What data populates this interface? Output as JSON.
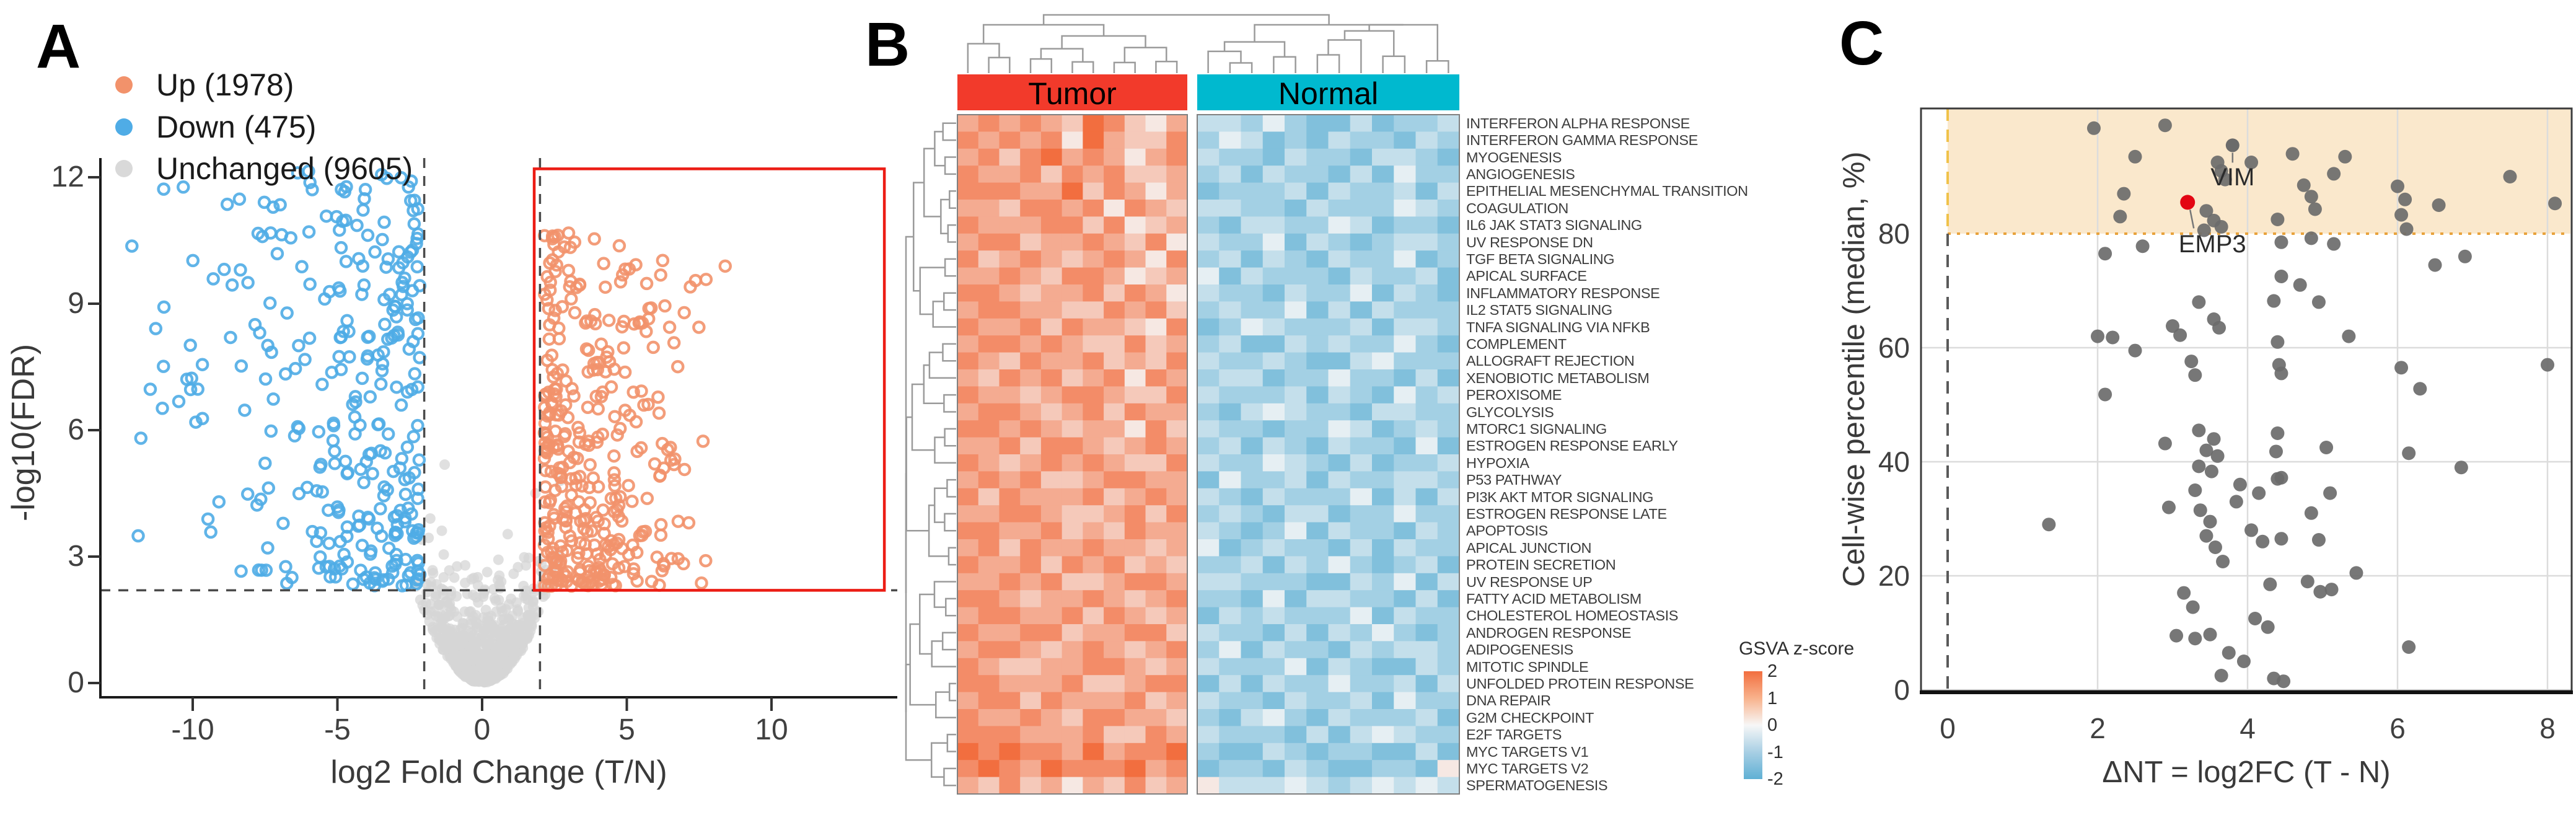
{
  "panel_labels": [
    "A",
    "B",
    "C"
  ],
  "chart_data": [
    {
      "panel": "A",
      "type": "scatter",
      "subtype": "volcano",
      "xlabel": "log2 Fold Change (T/N)",
      "ylabel": "-log10(FDR)",
      "x_ticks": [
        -10,
        -5,
        0,
        5,
        10
      ],
      "y_ticks": [
        0,
        3,
        6,
        9,
        12
      ],
      "xlim": [
        -13.2,
        14.3
      ],
      "ylim": [
        -0.35,
        12.45
      ],
      "series": [
        {
          "name": "Up (1978)",
          "count": 1978,
          "color": "#F2926B",
          "style": "ring",
          "n_displayed": 360
        },
        {
          "name": "Down (475)",
          "count": 475,
          "color": "#4FACE6",
          "style": "ring",
          "n_displayed": 310
        },
        {
          "name": "Unchanged (9605)",
          "count": 9605,
          "color": "#D9D9D9",
          "style": "solid",
          "n_displayed": 750
        }
      ],
      "legend_position": "top-left",
      "thresholds": {
        "vlines": [
          -2,
          2
        ],
        "hline": 2.2,
        "style": "dashed",
        "color": "#4a4a4a"
      },
      "highlight_box": {
        "x0": 1.8,
        "x1": 13.9,
        "y0": 2.2,
        "y1": 12.2,
        "color": "#EC1C14"
      },
      "seed": 42
    },
    {
      "panel": "B",
      "type": "heatmap",
      "col_groups": [
        {
          "name": "Tumor",
          "color": "#F23A2B",
          "n_cols": 11
        },
        {
          "name": "Normal",
          "color": "#00B9CF",
          "n_cols": 12
        }
      ],
      "rows": [
        "INTERFERON ALPHA RESPONSE",
        "INTERFERON GAMMA RESPONSE",
        "MYOGENESIS",
        "ANGIOGENESIS",
        "EPITHELIAL MESENCHYMAL TRANSITION",
        "COAGULATION",
        "IL6 JAK STAT3 SIGNALING",
        "UV RESPONSE DN",
        "TGF BETA SIGNALING",
        "APICAL SURFACE",
        "INFLAMMATORY RESPONSE",
        "IL2 STAT5 SIGNALING",
        "TNFA SIGNALING VIA NFKB",
        "COMPLEMENT",
        "ALLOGRAFT REJECTION",
        "XENOBIOTIC METABOLISM",
        "PEROXISOME",
        "GLYCOLYSIS",
        "MTORC1 SIGNALING",
        "ESTROGEN RESPONSE EARLY",
        "HYPOXIA",
        "P53 PATHWAY",
        "PI3K AKT MTOR SIGNALING",
        "ESTROGEN RESPONSE LATE",
        "APOPTOSIS",
        "APICAL JUNCTION",
        "PROTEIN SECRETION",
        "UV RESPONSE UP",
        "FATTY ACID METABOLISM",
        "CHOLESTEROL HOMEOSTASIS",
        "ANDROGEN RESPONSE",
        "ADIPOGENESIS",
        "MITOTIC SPINDLE",
        "UNFOLDED PROTEIN RESPONSE",
        "DNA REPAIR",
        "G2M CHECKPOINT",
        "E2F TARGETS",
        "MYC TARGETS V1",
        "MYC TARGETS V2",
        "SPERMATOGENESIS"
      ],
      "legend": {
        "title": "GSVA z-score",
        "ticks": [
          2,
          1,
          0,
          -1,
          -2
        ]
      },
      "colormap": {
        "positive": "#F26E3F",
        "zero": "#F7F7F7",
        "negative": "#5FB0D4",
        "domain": [
          -2,
          2
        ]
      },
      "values_encoded": {
        "note": "one digit per cell, 11 Tumor cols then 12 Normal cols; z = (4.5 - digit) / 2.25",
        "rows": [
          "21212301342667578868776",
          "12121402331756878677867",
          "21310212421677867786678",
          "12213121332768677868577",
          "11122031242877768677686",
          "22311214123667786777567",
          "12221131432786677568778",
          "21132212314677586787667",
          "13212321241768678677587",
          "22123112432586777867768",
          "11232213124677867758678",
          "21122331213767758686777",
          "12213122341875677768667",
          "21121233132768867677578",
          "12312213231677678865777",
          "23121321412766877577868",
          "12232112331677768678576",
          "21123213122786567786677",
          "11212322413677877568767",
          "22131123212768678677858",
          "12321212331677567868776",
          "21213321122857768677667",
          "13122213212678677758686",
          "22112332131767866877577",
          "11221323122678758677867",
          "21312212232587677868677",
          "12213121323776867578768",
          "22121332112667778867586",
          "11232212321778586677868",
          "21122131232867677758677",
          "12211322113677868675787",
          "21123212321758677867667",
          "12332211232677758678867",
          "11222133211868677577686",
          "21131222132677867768577",
          "12212311223786578677768",
          "11122213312677786865677",
          "01011202110788678778868",
          "10120111021877867887784",
          "23132423132466656765656"
        ]
      },
      "dendrograms": {
        "columns": true,
        "rows": true
      }
    },
    {
      "panel": "C",
      "type": "scatter",
      "xlabel": "ΔNT = log2FC (T - N)",
      "ylabel": "Cell-wise percentile (median, %)",
      "x_ticks": [
        0,
        2,
        4,
        6,
        8
      ],
      "y_ticks": [
        0,
        20,
        40,
        60,
        80
      ],
      "xlim": [
        -0.35,
        8.3
      ],
      "ylim": [
        0,
        102
      ],
      "band": {
        "y_min": 80,
        "x_min": 0,
        "fill": "#FAE8CC",
        "border": "#E8A33D"
      },
      "zero_line": {
        "x": 0,
        "style": "dashed",
        "color": "#5A5A5A"
      },
      "gridlines": {
        "x": [
          2,
          4,
          6,
          8
        ],
        "y": [
          0,
          20,
          40,
          60
        ]
      },
      "point_color": "#6B6B6B",
      "labeled_points": [
        {
          "name": "VIM",
          "x": 3.8,
          "y": 95.5,
          "color": "#6B6B6B"
        },
        {
          "name": "EMP3",
          "x": 3.2,
          "y": 85.5,
          "color": "#E30613"
        }
      ],
      "points": [
        [
          1.95,
          98.5
        ],
        [
          2.5,
          93.5
        ],
        [
          2.9,
          99
        ],
        [
          4.6,
          94
        ],
        [
          5.3,
          93.5
        ],
        [
          4.05,
          92.5
        ],
        [
          5.15,
          90.5
        ],
        [
          2.35,
          87
        ],
        [
          2.3,
          83
        ],
        [
          4.75,
          88.5
        ],
        [
          4.85,
          86.5
        ],
        [
          4.9,
          84.3
        ],
        [
          3.45,
          84
        ],
        [
          3.55,
          82.3
        ],
        [
          3.42,
          80.6
        ],
        [
          3.65,
          81.2
        ],
        [
          4.4,
          82.5
        ],
        [
          6.0,
          88.3
        ],
        [
          6.1,
          86
        ],
        [
          6.05,
          83.3
        ],
        [
          6.12,
          80.8
        ],
        [
          7.5,
          90
        ],
        [
          6.55,
          85
        ],
        [
          8.1,
          85.3
        ],
        [
          3.6,
          92.5
        ],
        [
          3.65,
          91
        ],
        [
          3.7,
          89.5
        ],
        [
          2.1,
          76.5
        ],
        [
          2.6,
          77.8
        ],
        [
          4.45,
          78.5
        ],
        [
          4.85,
          79.2
        ],
        [
          5.15,
          78.2
        ],
        [
          4.45,
          72.5
        ],
        [
          4.7,
          71
        ],
        [
          4.95,
          68
        ],
        [
          6.5,
          74.5
        ],
        [
          6.9,
          76
        ],
        [
          2.0,
          62
        ],
        [
          2.2,
          61.8
        ],
        [
          2.5,
          59.5
        ],
        [
          3.0,
          63.8
        ],
        [
          3.1,
          62.2
        ],
        [
          3.35,
          68
        ],
        [
          3.55,
          65
        ],
        [
          3.62,
          63.5
        ],
        [
          3.25,
          57.6
        ],
        [
          3.3,
          55.2
        ],
        [
          2.1,
          51.8
        ],
        [
          5.35,
          62
        ],
        [
          4.4,
          61
        ],
        [
          4.42,
          57
        ],
        [
          4.45,
          55.5
        ],
        [
          4.35,
          68.2
        ],
        [
          2.9,
          43.2
        ],
        [
          6.05,
          56.5
        ],
        [
          6.3,
          52.8
        ],
        [
          8.0,
          57
        ],
        [
          5.05,
          42.5
        ],
        [
          6.15,
          41.5
        ],
        [
          4.4,
          45
        ],
        [
          4.38,
          41.8
        ],
        [
          3.35,
          45.5
        ],
        [
          3.55,
          44
        ],
        [
          3.45,
          42
        ],
        [
          3.6,
          41
        ],
        [
          1.35,
          29
        ],
        [
          2.95,
          32
        ],
        [
          3.35,
          39.2
        ],
        [
          3.52,
          38.3
        ],
        [
          3.3,
          35
        ],
        [
          3.37,
          31.5
        ],
        [
          3.5,
          29.5
        ],
        [
          3.45,
          27
        ],
        [
          3.57,
          25
        ],
        [
          3.67,
          22.5
        ],
        [
          3.15,
          17
        ],
        [
          3.27,
          14.5
        ],
        [
          3.05,
          9.5
        ],
        [
          3.3,
          9
        ],
        [
          3.5,
          9.7
        ],
        [
          3.75,
          6.5
        ],
        [
          4.1,
          12.5
        ],
        [
          4.27,
          11
        ],
        [
          3.95,
          5
        ],
        [
          3.65,
          2.5
        ],
        [
          4.35,
          2
        ],
        [
          4.3,
          18.5
        ],
        [
          4.05,
          28
        ],
        [
          4.2,
          26
        ],
        [
          4.15,
          34.5
        ],
        [
          4.4,
          37
        ],
        [
          3.9,
          36
        ],
        [
          3.85,
          33
        ],
        [
          4.45,
          37.2
        ],
        [
          5.1,
          34.5
        ],
        [
          4.85,
          31
        ],
        [
          4.45,
          26.5
        ],
        [
          4.95,
          26.3
        ],
        [
          5.45,
          20.5
        ],
        [
          4.8,
          19
        ],
        [
          4.97,
          17.2
        ],
        [
          5.12,
          17.6
        ],
        [
          6.85,
          39
        ],
        [
          6.15,
          7.5
        ],
        [
          4.48,
          1.5
        ]
      ]
    }
  ]
}
